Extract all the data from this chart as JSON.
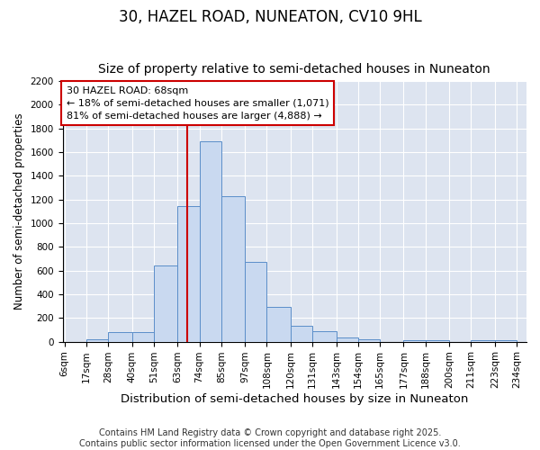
{
  "title": "30, HAZEL ROAD, NUNEATON, CV10 9HL",
  "subtitle": "Size of property relative to semi-detached houses in Nuneaton",
  "xlabel": "Distribution of semi-detached houses by size in Nuneaton",
  "ylabel": "Number of semi-detached properties",
  "footer_line1": "Contains HM Land Registry data © Crown copyright and database right 2025.",
  "footer_line2": "Contains public sector information licensed under the Open Government Licence v3.0.",
  "annotation_title": "30 HAZEL ROAD: 68sqm",
  "annotation_line1": "← 18% of semi-detached houses are smaller (1,071)",
  "annotation_line2": "81% of semi-detached houses are larger (4,888) →",
  "bar_left_edges": [
    6,
    17,
    28,
    40,
    51,
    63,
    74,
    85,
    97,
    108,
    120,
    131,
    143,
    154,
    165,
    177,
    188,
    200,
    211,
    223
  ],
  "bar_heights": [
    0,
    20,
    80,
    80,
    640,
    1140,
    1690,
    1230,
    670,
    295,
    130,
    90,
    35,
    20,
    0,
    15,
    15,
    0,
    15,
    15
  ],
  "bar_widths": [
    11,
    11,
    12,
    11,
    12,
    11,
    11,
    12,
    11,
    12,
    11,
    12,
    11,
    11,
    12,
    11,
    12,
    11,
    12,
    11
  ],
  "tick_labels": [
    "6sqm",
    "17sqm",
    "28sqm",
    "40sqm",
    "51sqm",
    "63sqm",
    "74sqm",
    "85sqm",
    "97sqm",
    "108sqm",
    "120sqm",
    "131sqm",
    "143sqm",
    "154sqm",
    "165sqm",
    "177sqm",
    "188sqm",
    "200sqm",
    "211sqm",
    "223sqm",
    "234sqm"
  ],
  "tick_positions": [
    6,
    17,
    28,
    40,
    51,
    63,
    74,
    85,
    97,
    108,
    120,
    131,
    143,
    154,
    165,
    177,
    188,
    200,
    211,
    223,
    234
  ],
  "property_line_x": 68,
  "ylim": [
    0,
    2200
  ],
  "yticks": [
    0,
    200,
    400,
    600,
    800,
    1000,
    1200,
    1400,
    1600,
    1800,
    2000,
    2200
  ],
  "bar_face_color": "#c9d9f0",
  "bar_edge_color": "#5b8ec9",
  "property_line_color": "#cc0000",
  "annotation_box_color": "#cc0000",
  "plot_bg_color": "#dde4f0",
  "figure_bg_color": "#ffffff",
  "grid_color": "#ffffff",
  "title_fontsize": 12,
  "subtitle_fontsize": 10,
  "xlabel_fontsize": 9.5,
  "ylabel_fontsize": 8.5,
  "tick_fontsize": 7.5,
  "footer_fontsize": 7,
  "annotation_fontsize": 8
}
